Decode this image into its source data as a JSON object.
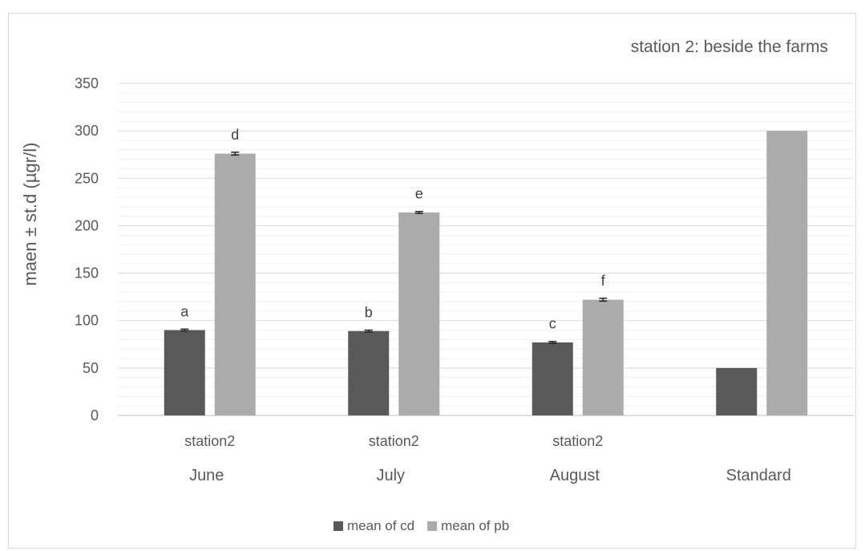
{
  "chart_data": {
    "type": "bar",
    "title": "station 2: beside the farms",
    "ylabel": "maen ± st.d (µgr/l)",
    "xlabel": "",
    "ylim": [
      0,
      350
    ],
    "yticks": [
      0,
      50,
      100,
      150,
      200,
      250,
      300,
      350
    ],
    "minor_grid_step": 10,
    "grid": true,
    "legend_position": "bottom",
    "categories": [
      "station2",
      "station2",
      "station2",
      ""
    ],
    "groups": [
      "June",
      "July",
      "August",
      "Standard"
    ],
    "series": [
      {
        "name": "mean of cd",
        "color": "#595959",
        "values": [
          90,
          89,
          77,
          50
        ],
        "errors": [
          1,
          1,
          1,
          null
        ],
        "labels": [
          "a",
          "b",
          "c",
          ""
        ]
      },
      {
        "name": "mean of pb",
        "color": "#ababab",
        "values": [
          276,
          214,
          122,
          300
        ],
        "errors": [
          1.5,
          1,
          1.5,
          null
        ],
        "labels": [
          "d",
          "e",
          "f",
          ""
        ]
      }
    ]
  }
}
